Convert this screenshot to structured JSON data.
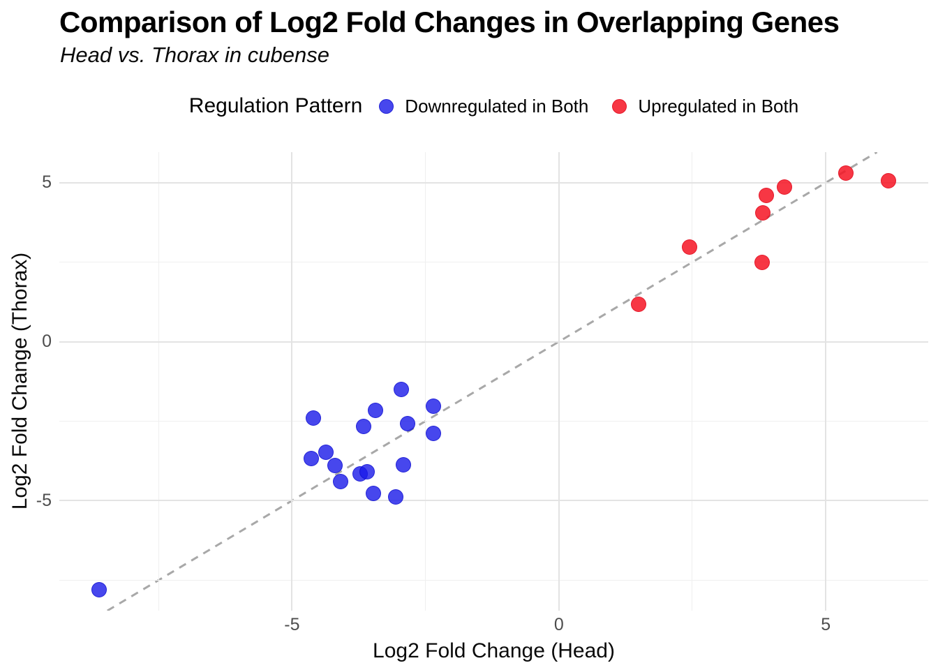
{
  "header": {
    "title": "Comparison of Log2 Fold Changes in Overlapping Genes",
    "subtitle": "Head vs. Thorax in cubense"
  },
  "legend": {
    "title": "Regulation Pattern",
    "items": [
      {
        "label": "Downregulated in Both",
        "color": "rgba(25,25,232,0.8)",
        "edge": "rgba(10,10,200,0.6)"
      },
      {
        "label": "Upregulated in Both",
        "color": "rgba(246,20,35,0.85)",
        "edge": "rgba(215,5,25,0.6)"
      }
    ]
  },
  "chart_data": {
    "type": "scatter",
    "title": "Comparison of Log2 Fold Changes in Overlapping Genes",
    "subtitle": "Head vs. Thorax in cubense",
    "xlabel": "Log2 Fold Change (Head)",
    "ylabel": "Log2 Fold Change (Thorax)",
    "xlim": [
      -9.36,
      6.92
    ],
    "ylim": [
      -8.46,
      5.96
    ],
    "x_tick_values": [
      -5,
      0,
      5
    ],
    "x_tick_labels": [
      "-5",
      "0",
      "5"
    ],
    "y_tick_values": [
      5,
      0,
      -5
    ],
    "y_tick_labels": [
      "5",
      "0",
      "-5"
    ],
    "x_minor_ticks": [
      -7.5,
      -2.5,
      2.5
    ],
    "y_minor_ticks": [
      -7.5,
      -2.5,
      2.5
    ],
    "grid": true,
    "legend_position": "top",
    "reference_line": {
      "equation": "y = x",
      "style": "dashed",
      "color": "#a8a8a8",
      "width": 3,
      "dash": "11 9"
    },
    "series": [
      {
        "name": "Downregulated in Both",
        "color": "rgba(25,25,232,0.8)",
        "edge": "rgba(10,10,200,0.6)",
        "points": [
          [
            -8.62,
            -7.8
          ],
          [
            -4.64,
            -3.67
          ],
          [
            -4.6,
            -2.4
          ],
          [
            -4.37,
            -3.48
          ],
          [
            -4.2,
            -3.89
          ],
          [
            -4.09,
            -4.4
          ],
          [
            -3.73,
            -4.15
          ],
          [
            -3.66,
            -2.66
          ],
          [
            -3.59,
            -4.1
          ],
          [
            -3.48,
            -4.77
          ],
          [
            -3.43,
            -2.15
          ],
          [
            -3.06,
            -4.88
          ],
          [
            -2.95,
            -1.51
          ],
          [
            -2.91,
            -3.88
          ],
          [
            -2.84,
            -2.57
          ],
          [
            -2.35,
            -2.04
          ],
          [
            -2.35,
            -2.88
          ]
        ]
      },
      {
        "name": "Upregulated in Both",
        "color": "rgba(246,20,35,0.85)",
        "edge": "rgba(215,5,25,0.6)",
        "points": [
          [
            1.49,
            1.17
          ],
          [
            2.45,
            2.98
          ],
          [
            3.81,
            2.5
          ],
          [
            3.82,
            4.04
          ],
          [
            3.88,
            4.59
          ],
          [
            4.22,
            4.86
          ],
          [
            5.38,
            5.3
          ],
          [
            6.17,
            5.05
          ]
        ]
      }
    ]
  }
}
